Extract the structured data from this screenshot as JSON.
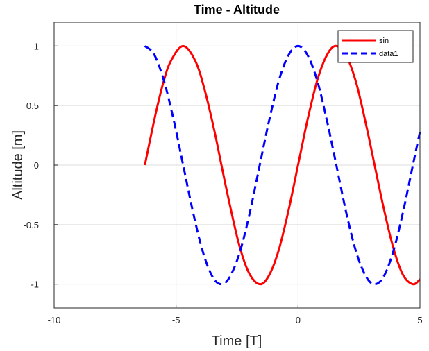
{
  "chart_data": {
    "type": "line",
    "title": "Time - Altitude",
    "xlabel": "Time [T]",
    "ylabel": "Altitude [m]",
    "xlim": [
      -10,
      5
    ],
    "ylim": [
      -1.2,
      1.2
    ],
    "xticks": [
      "-10",
      "-5",
      "0",
      "5"
    ],
    "yticks": [
      "1",
      "0.5",
      "0",
      "-0.5",
      "-1"
    ],
    "grid": true,
    "legend_position": "top-right",
    "series": [
      {
        "name": "sin",
        "color": "#ff0000",
        "style": "solid",
        "x": [
          -6.28,
          -5.85,
          -5.5,
          -5.2,
          -4.71,
          -4.2,
          -3.8,
          -3.4,
          -3.14,
          -2.8,
          -2.4,
          -2.0,
          -1.57,
          -1.2,
          -0.8,
          -0.4,
          0.0,
          0.4,
          0.8,
          1.2,
          1.57,
          2.0,
          2.4,
          2.8,
          3.14,
          3.5,
          3.9,
          4.3,
          4.71,
          5.0
        ],
        "y": [
          0.0,
          0.42,
          0.71,
          0.88,
          1.0,
          0.87,
          0.61,
          0.26,
          0.0,
          -0.33,
          -0.68,
          -0.91,
          -1.0,
          -0.93,
          -0.72,
          -0.39,
          0.0,
          0.39,
          0.72,
          0.93,
          1.0,
          0.91,
          0.68,
          0.33,
          0.0,
          -0.35,
          -0.69,
          -0.92,
          -1.0,
          -0.96
        ]
      },
      {
        "name": "data1",
        "color": "#0000ff",
        "style": "dashed",
        "x": [
          -6.28,
          -5.9,
          -5.5,
          -5.1,
          -4.71,
          -4.3,
          -3.9,
          -3.5,
          -3.14,
          -2.8,
          -2.4,
          -2.0,
          -1.57,
          -1.2,
          -0.8,
          -0.4,
          0.0,
          0.4,
          0.8,
          1.2,
          1.57,
          2.0,
          2.4,
          2.8,
          3.14,
          3.5,
          3.9,
          4.3,
          4.71,
          5.0
        ],
        "y": [
          1.0,
          0.93,
          0.71,
          0.38,
          0.0,
          -0.4,
          -0.73,
          -0.94,
          -1.0,
          -0.94,
          -0.74,
          -0.42,
          0.0,
          0.36,
          0.7,
          0.92,
          1.0,
          0.92,
          0.7,
          0.36,
          0.0,
          -0.42,
          -0.74,
          -0.94,
          -1.0,
          -0.94,
          -0.73,
          -0.4,
          0.0,
          0.28
        ]
      }
    ]
  }
}
